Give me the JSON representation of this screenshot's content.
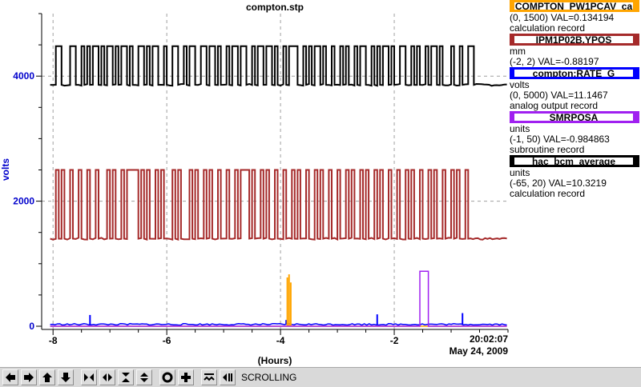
{
  "chart_data": {
    "type": "line",
    "title": "compton.stp",
    "ylabel": "volts",
    "xlabel": "(Hours)",
    "xlim": [
      -8.2,
      0
    ],
    "ylim": [
      0,
      5000
    ],
    "x_ticks": [
      -8,
      -6,
      -4,
      -2
    ],
    "x_tick_labels": [
      "-8",
      "-6",
      "-4",
      "-2"
    ],
    "y_ticks": [
      0,
      2000,
      4000
    ],
    "y_tick_labels": [
      "0",
      "2000",
      "4000"
    ],
    "grid": true,
    "end_time": "20:02:07",
    "end_date": "May 24, 2009",
    "series": [
      {
        "color": "#000000",
        "low": 3860,
        "high": 4480,
        "transitions": [
          -7.95,
          -7.85,
          -7.7,
          -7.6,
          -7.5,
          -7.45,
          -7.4,
          -7.35,
          -7.3,
          -7.2,
          -7.15,
          -7.1,
          -7.05,
          -6.95,
          -6.9,
          -6.85,
          -6.8,
          -6.7,
          -6.65,
          -6.6,
          -6.5,
          -6.4,
          -6.35,
          -6.3,
          -6.25,
          -6.15,
          -6.05,
          -6.0,
          -5.9,
          -5.8,
          -5.7,
          -5.65,
          -5.6,
          -5.5,
          -5.4,
          -5.3,
          -5.25,
          -5.15,
          -5.1,
          -5.05,
          -4.95,
          -4.9,
          -4.85,
          -4.75,
          -4.7,
          -4.6,
          -4.5,
          -4.45,
          -4.4,
          -4.3,
          -4.25,
          -4.15,
          -4.1,
          -4.05,
          -3.95,
          -3.9,
          -3.85,
          -3.7,
          -3.6,
          -3.55,
          -3.5,
          -3.45,
          -3.4,
          -3.3,
          -3.25,
          -3.2,
          -3.1,
          -3.05,
          -2.95,
          -2.9,
          -2.85,
          -2.8,
          -2.7,
          -2.65,
          -2.6,
          -2.5,
          -2.4,
          -2.35,
          -2.3,
          -2.25,
          -2.2,
          -2.1,
          -2.05,
          -2.0,
          -1.9,
          -1.8,
          -1.7,
          -1.65,
          -1.6,
          -1.55,
          -1.45,
          -1.4,
          -1.35,
          -1.25,
          -1.2,
          -1.15,
          -1.0,
          -0.95,
          -0.85,
          -0.8,
          -0.7,
          -0.6
        ]
      },
      {
        "color": "#a52a2a",
        "low": 1400,
        "high": 2500,
        "transitions": [
          -7.95,
          -7.9,
          -7.85,
          -7.8,
          -7.7,
          -7.65,
          -7.55,
          -7.5,
          -7.4,
          -7.35,
          -7.25,
          -7.2,
          -7.05,
          -7.0,
          -6.95,
          -6.9,
          -6.8,
          -6.75,
          -6.7,
          -6.5,
          -6.45,
          -6.4,
          -6.35,
          -6.3,
          -6.2,
          -6.15,
          -6.1,
          -6.05,
          -5.9,
          -5.85,
          -5.8,
          -5.75,
          -5.6,
          -5.55,
          -5.5,
          -5.45,
          -5.35,
          -5.3,
          -5.25,
          -5.2,
          -5.1,
          -5.05,
          -4.95,
          -4.9,
          -4.8,
          -4.75,
          -4.7,
          -4.55,
          -4.5,
          -4.45,
          -4.35,
          -4.3,
          -4.25,
          -4.2,
          -4.1,
          -4.05,
          -3.95,
          -3.9,
          -3.8,
          -3.75,
          -3.7,
          -3.65,
          -3.55,
          -3.5,
          -3.4,
          -3.35,
          -3.3,
          -3.25,
          -3.15,
          -3.1,
          -3.0,
          -2.95,
          -2.85,
          -2.8,
          -2.75,
          -2.7,
          -2.6,
          -2.55,
          -2.5,
          -2.45,
          -2.35,
          -2.3,
          -2.25,
          -2.2,
          -2.1,
          -2.05,
          -1.95,
          -1.9,
          -1.8,
          -1.75,
          -1.7,
          -1.65,
          -1.55,
          -1.5,
          -1.4,
          -1.35,
          -1.3,
          -1.25,
          -1.15,
          -1.1,
          -1.0,
          -0.95,
          -0.9,
          -0.85,
          -0.75,
          -0.7
        ]
      },
      {
        "color": "#0000ff",
        "low": 30,
        "high": 30,
        "spikes": [
          [
            -7.35,
            180
          ],
          [
            -3.9,
            100
          ],
          [
            -2.3,
            190
          ],
          [
            -0.8,
            210
          ]
        ],
        "transitions": []
      },
      {
        "color": "#ffa500",
        "low": 0,
        "high": 0,
        "spikes": [
          [
            -3.88,
            780
          ],
          [
            -3.85,
            830
          ],
          [
            -3.82,
            700
          ]
        ],
        "transitions": []
      },
      {
        "color": "#a020f0",
        "low": 0,
        "high": 880,
        "transitions": [
          -1.55,
          -1.4
        ]
      }
    ]
  },
  "legend": [
    {
      "name": "COMPTON_PW1PCAV_ca",
      "color": "#ffa500",
      "units": "",
      "range_value": "(0, 1500) VAL=0.134194",
      "record_type": "calculation record"
    },
    {
      "name": "IPM1P02B.YPOS",
      "color": "#a52a2a",
      "units": "mm",
      "range_value": "(-2, 2) VAL=-0.88197",
      "record_type": ""
    },
    {
      "name": "compton:RATE_G",
      "color": "#0000ff",
      "units": "volts",
      "range_value": "(0, 5000) VAL=11.1467",
      "record_type": "analog output record"
    },
    {
      "name": "SMRPOSA",
      "color": "#a020f0",
      "units": "units",
      "range_value": "(-1, 50) VAL=-0.984863",
      "record_type": "subroutine record"
    },
    {
      "name": "hac_bcm_average",
      "color": "#000000",
      "units": "units",
      "range_value": "(-65, 20) VAL=10.3219",
      "record_type": "calculation record"
    }
  ],
  "toolbar": {
    "status": "SCROLLING",
    "buttons": [
      "arrow-left",
      "arrow-right",
      "arrow-up",
      "arrow-down",
      "compress-horizontal",
      "expand-horizontal",
      "compress-vertical",
      "expand-vertical",
      "zoom-reset",
      "zoom-in",
      "autoscale",
      "scroll-mode"
    ]
  }
}
